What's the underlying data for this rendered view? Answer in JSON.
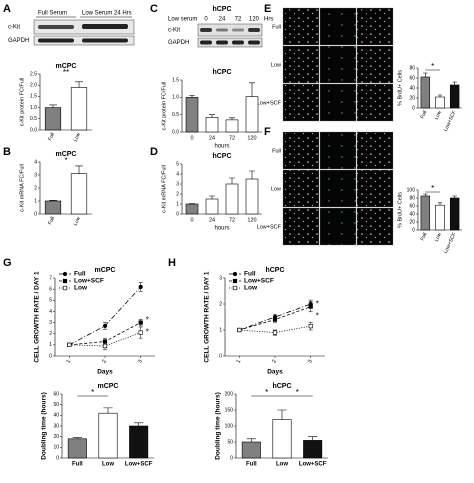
{
  "panel_letters": [
    "A",
    "B",
    "C",
    "D",
    "E",
    "F",
    "G",
    "H"
  ],
  "blots": {
    "A": {
      "lanes": [
        "Full Serum",
        "Low Serum 24 Hrs"
      ],
      "rows": [
        "c-Kit",
        "GAPDH"
      ]
    },
    "C": {
      "title": "hCPC",
      "condition": "Low serum",
      "lanes": [
        "0",
        "24",
        "72",
        "120",
        "Hrs"
      ],
      "rows": [
        "c-Kit",
        "GAPDH"
      ]
    }
  },
  "micrographs": {
    "E": {
      "columns": [
        "DAPI",
        "BrdU",
        "Merged"
      ],
      "rows": [
        "Full",
        "Low",
        "Low+SCF"
      ]
    },
    "F": {
      "columns": [
        "DAPI",
        "BrdU",
        "Merged"
      ],
      "rows": [
        "Full",
        "Low",
        "Low+SCF"
      ]
    }
  },
  "chart_data": [
    {
      "type": "bar",
      "title": "mCPC",
      "ylabel": "c-Kit protein FC/Full",
      "categories": [
        "Full",
        "Low"
      ],
      "values": [
        1.0,
        1.9
      ],
      "errors": [
        0.12,
        0.25
      ],
      "colors": [
        "#808080",
        "#ffffff"
      ],
      "ylim": [
        0,
        2.5
      ],
      "yticks": [
        {
          "value": 0,
          "label": "0.0"
        },
        0.5,
        {
          "value": 1,
          "label": "1.0"
        },
        1.5,
        {
          "value": 2,
          "label": "2.0"
        },
        2.5
      ],
      "annotations": [
        "**"
      ]
    },
    {
      "type": "bar",
      "title": "mCPC",
      "ylabel": "c-Kit mRNA FC/Full",
      "categories": [
        "Full",
        "Low"
      ],
      "values": [
        1.0,
        3.1
      ],
      "errors": [
        0.05,
        0.6
      ],
      "colors": [
        "#808080",
        "#ffffff"
      ],
      "ylim": [
        0,
        4
      ],
      "yticks": [
        0,
        1,
        2,
        3,
        4
      ],
      "annotations": [
        "*"
      ]
    },
    {
      "type": "bar",
      "title": "hCPC",
      "xlabel": "hours",
      "ylabel": "c-Kit protein FC/Full",
      "categories": [
        "0",
        "24",
        "72",
        "120"
      ],
      "values": [
        1.0,
        0.42,
        0.35,
        1.02
      ],
      "errors": [
        0.06,
        0.08,
        0.06,
        0.4
      ],
      "colors": [
        "#808080",
        "#ffffff",
        "#ffffff",
        "#ffffff"
      ],
      "ylim": [
        0,
        1.5
      ],
      "yticks": [
        {
          "value": 0,
          "label": "0.0"
        },
        0.5,
        {
          "value": 1,
          "label": "1.0"
        },
        1.5
      ]
    },
    {
      "type": "bar",
      "title": "hCPC",
      "xlabel": "hours",
      "ylabel": "c-Kit mRNA FC/Full",
      "categories": [
        "0",
        "24",
        "72",
        "120"
      ],
      "values": [
        1.0,
        1.5,
        3.0,
        3.5
      ],
      "errors": [
        0.05,
        0.3,
        0.6,
        0.8
      ],
      "colors": [
        "#808080",
        "#ffffff",
        "#ffffff",
        "#ffffff"
      ],
      "ylim": [
        0,
        5
      ],
      "yticks": [
        0,
        1,
        2,
        3,
        4,
        5
      ]
    },
    {
      "type": "bar",
      "ylabel": "% BrdU+ Cells",
      "categories": [
        "Full",
        "Low",
        "Low+SCF"
      ],
      "values": [
        62,
        22,
        46
      ],
      "errors": [
        8,
        4,
        6
      ],
      "colors": [
        "#808080",
        "#ffffff",
        "#111111"
      ],
      "ylim": [
        0,
        80
      ],
      "yticks": [
        0,
        20,
        40,
        60,
        80
      ],
      "annotations": [
        "*"
      ]
    },
    {
      "type": "bar",
      "ylabel": "% BrdU+ Cells",
      "categories": [
        "Full",
        "Low",
        "Low+SCF"
      ],
      "values": [
        85,
        62,
        80
      ],
      "errors": [
        5,
        6,
        5
      ],
      "colors": [
        "#808080",
        "#ffffff",
        "#111111"
      ],
      "ylim": [
        0,
        100
      ],
      "yticks": [
        0,
        20,
        40,
        60,
        80,
        100
      ],
      "annotations": [
        "*"
      ]
    },
    {
      "type": "line",
      "title": "mCPC",
      "xlabel": "Days",
      "ylabel": "CELL GROWTH RATE / DAY 1",
      "x": [
        1,
        2,
        3
      ],
      "xlim": [
        0.6,
        3.4
      ],
      "xticks": [
        1,
        2,
        3
      ],
      "ylim": [
        0,
        7
      ],
      "yticks": [
        0,
        1,
        2,
        3,
        4,
        5,
        6,
        7
      ],
      "series": [
        {
          "name": "Full",
          "color": "#000000",
          "line_style": "dash-dot",
          "marker": "circle",
          "marker_fill": true,
          "values": [
            1,
            2.7,
            6.2
          ],
          "errors": [
            0,
            0.3,
            0.4
          ]
        },
        {
          "name": "Low+SCF",
          "color": "#000000",
          "line_style": "dashed",
          "marker": "square",
          "marker_fill": true,
          "values": [
            1,
            1.3,
            3.0
          ],
          "errors": [
            0,
            0.3,
            0.3
          ]
        },
        {
          "name": "Low",
          "color": "#000000",
          "line_style": "dotted",
          "marker": "square",
          "marker_fill": false,
          "values": [
            1,
            0.9,
            2.1
          ],
          "errors": [
            0,
            0.3,
            0.5
          ]
        }
      ],
      "annotations": [
        "*",
        "*"
      ]
    },
    {
      "type": "line",
      "title": "hCPC",
      "xlabel": "Days",
      "ylabel": "CELL GROWTH RATE / DAY 1",
      "x": [
        1,
        2,
        3
      ],
      "xlim": [
        0.6,
        3.4
      ],
      "xticks": [
        1,
        2,
        3
      ],
      "ylim": [
        0,
        3
      ],
      "yticks": [
        0,
        1,
        2,
        3
      ],
      "series": [
        {
          "name": "Full",
          "color": "#000000",
          "line_style": "dash-dot",
          "marker": "circle",
          "marker_fill": true,
          "values": [
            1,
            1.5,
            2.0
          ],
          "errors": [
            0,
            0.1,
            0.15
          ]
        },
        {
          "name": "Low+SCF",
          "color": "#000000",
          "line_style": "dashed",
          "marker": "square",
          "marker_fill": true,
          "values": [
            1,
            1.4,
            1.9
          ],
          "errors": [
            0,
            0.1,
            0.2
          ]
        },
        {
          "name": "Low",
          "color": "#000000",
          "line_style": "dotted",
          "marker": "square",
          "marker_fill": false,
          "values": [
            1,
            0.9,
            1.15
          ],
          "errors": [
            0,
            0.1,
            0.15
          ]
        }
      ],
      "annotations": [
        "*",
        "*"
      ]
    },
    {
      "type": "bar",
      "title": "mCPC",
      "ylabel": "Doubling time (hours)",
      "categories": [
        "Full",
        "Low",
        "Low+SCF"
      ],
      "values": [
        18,
        42,
        30
      ],
      "errors": [
        1,
        5,
        3
      ],
      "colors": [
        "#808080",
        "#ffffff",
        "#111111"
      ],
      "ylim": [
        0,
        60
      ],
      "yticks": [
        0,
        10,
        20,
        30,
        40,
        50,
        60
      ],
      "annotations": [
        "*"
      ]
    },
    {
      "type": "bar",
      "title": "hCPC",
      "ylabel": "Doubling time (hours)",
      "categories": [
        "Full",
        "Low",
        "Low+SCF"
      ],
      "values": [
        50,
        120,
        55
      ],
      "errors": [
        10,
        30,
        12
      ],
      "colors": [
        "#808080",
        "#ffffff",
        "#111111"
      ],
      "ylim": [
        0,
        200
      ],
      "yticks": [
        0,
        50,
        100,
        150,
        200
      ],
      "annotations": [
        "*",
        "*"
      ]
    }
  ]
}
